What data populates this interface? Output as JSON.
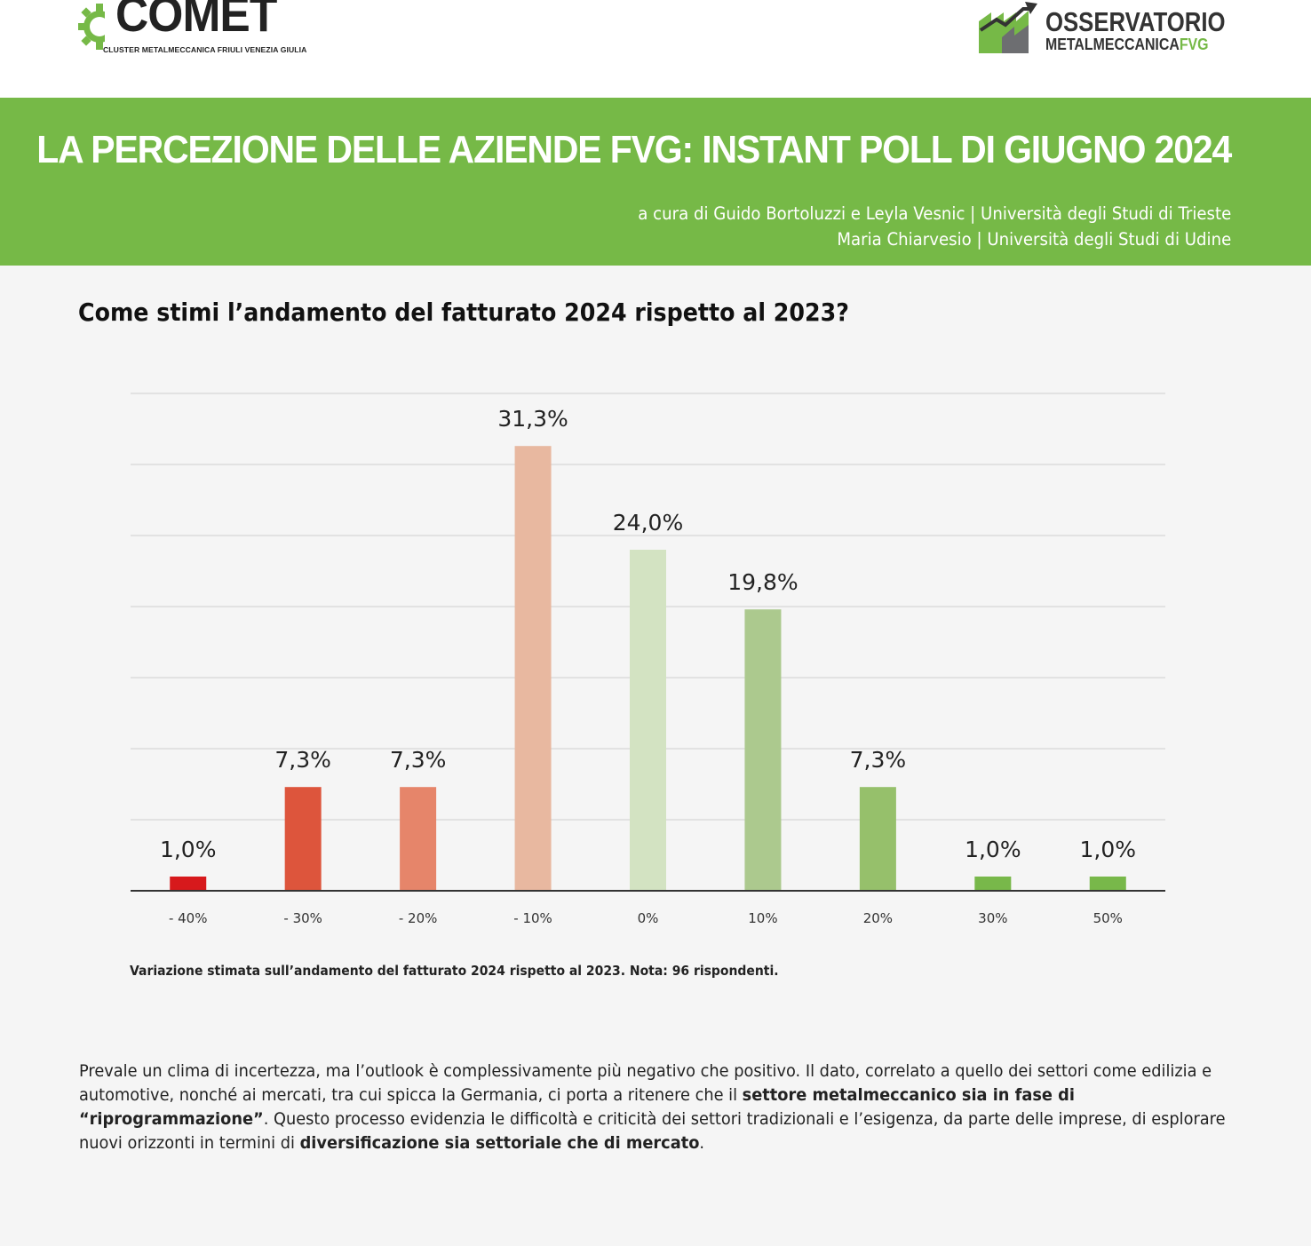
{
  "header": {
    "logo_left": {
      "name": "COMET",
      "subtitle": "CLUSTER METALMECCANICA FRIULI VENEZIA GIULIA"
    },
    "logo_right": {
      "line1": "OSSERVATORIO",
      "line2": "METALMECCANICA",
      "line2_accent": "FVG"
    }
  },
  "banner": {
    "title": "LA PERCEZIONE DELLE AZIENDE FVG: INSTANT POLL DI GIUGNO 2024",
    "credit_line1": "a cura di Guido Bortoluzzi e Leyla Vesnic | Università degli Studi di Trieste",
    "credit_line2": "Maria Chiarvesio | Università degli Studi di Udine",
    "color": "#76b947"
  },
  "question": "Come stimi l’andamento del fatturato 2024 rispetto al 2023?",
  "chart_data": {
    "type": "bar",
    "categories": [
      "- 40%",
      "- 30%",
      "- 20%",
      "- 10%",
      "0%",
      "10%",
      "20%",
      "30%",
      "50%"
    ],
    "values": [
      1.0,
      7.3,
      7.3,
      31.3,
      24.0,
      19.8,
      7.3,
      1.0,
      1.0
    ],
    "value_labels": [
      "1,0%",
      "7,3%",
      "7,3%",
      "31,3%",
      "24,0%",
      "19,8%",
      "7,3%",
      "1,0%",
      "1,0%"
    ],
    "colors": [
      "#d7191c",
      "#dd553c",
      "#e6856a",
      "#e8b8a0",
      "#d3e3c2",
      "#acc98e",
      "#96c06b",
      "#78b84a",
      "#78b84a"
    ],
    "ylim": [
      0,
      35
    ],
    "grid": true,
    "title": "",
    "xlabel": "",
    "ylabel": ""
  },
  "caption": "Variazione stimata sull’andamento del fatturato 2024 rispetto al 2023. Nota: 96 rispondenti.",
  "body": {
    "p1": "Prevale un clima di incertezza, ma l’outlook è complessivamente più negativo che positivo. Il dato, correlato a quello dei settori come edilizia e automotive, nonché ai mercati, tra cui spicca la Germania, ci porta a ritenere che il ",
    "b1": "settore metalmeccanico sia in fase di “riprogrammazione”",
    "p2": ". Questo processo evidenzia le difficoltà e criticità dei settori tradizionali e l’esigenza, da parte delle imprese, di esplorare nuovi orizzonti in termini di ",
    "b2": "diversificazione sia settoriale che di mercato",
    "p3": "."
  }
}
